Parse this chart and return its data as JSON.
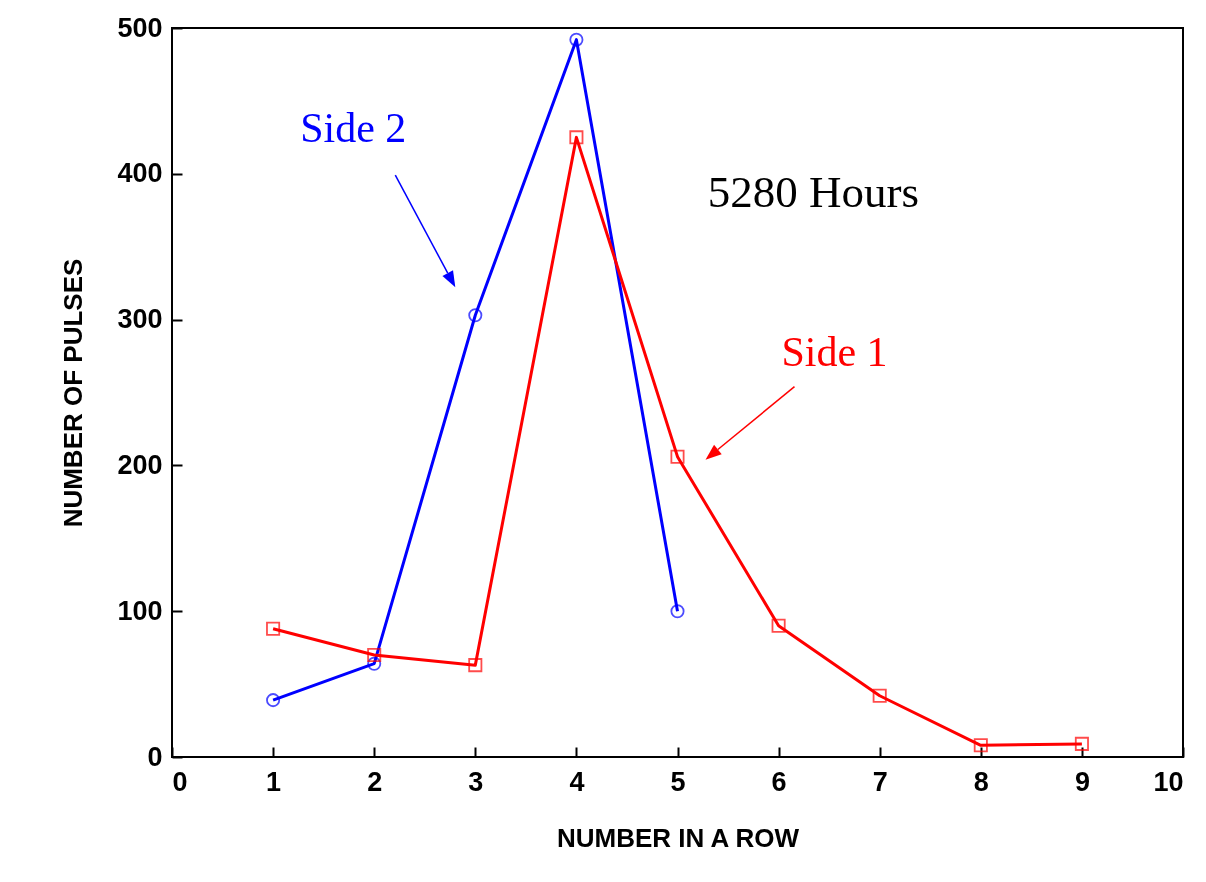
{
  "chart_data": {
    "type": "line",
    "xlabel": "NUMBER IN A ROW",
    "ylabel": "NUMBER OF PULSES",
    "annotations": [
      "5280 Hours"
    ],
    "x": [
      1,
      2,
      3,
      4,
      5,
      6,
      7,
      8,
      9
    ],
    "series": [
      {
        "name": "Side 2",
        "color": "#0000ff",
        "marker": "circle",
        "x": [
          1,
          2,
          3,
          4,
          5
        ],
        "values": [
          39,
          64,
          303,
          492,
          100
        ]
      },
      {
        "name": "Side 1",
        "color": "#ff0000",
        "marker": "square",
        "values": [
          88,
          70,
          63,
          425,
          206,
          90,
          42,
          8,
          9
        ]
      }
    ],
    "xlim": [
      0,
      10
    ],
    "xticks": [
      0,
      1,
      2,
      3,
      4,
      5,
      6,
      7,
      8,
      9,
      10
    ],
    "ylim": [
      0,
      500
    ],
    "yticks": [
      0,
      100,
      200,
      300,
      400,
      500
    ],
    "grid": false,
    "legend": false,
    "line_style": "solid"
  }
}
